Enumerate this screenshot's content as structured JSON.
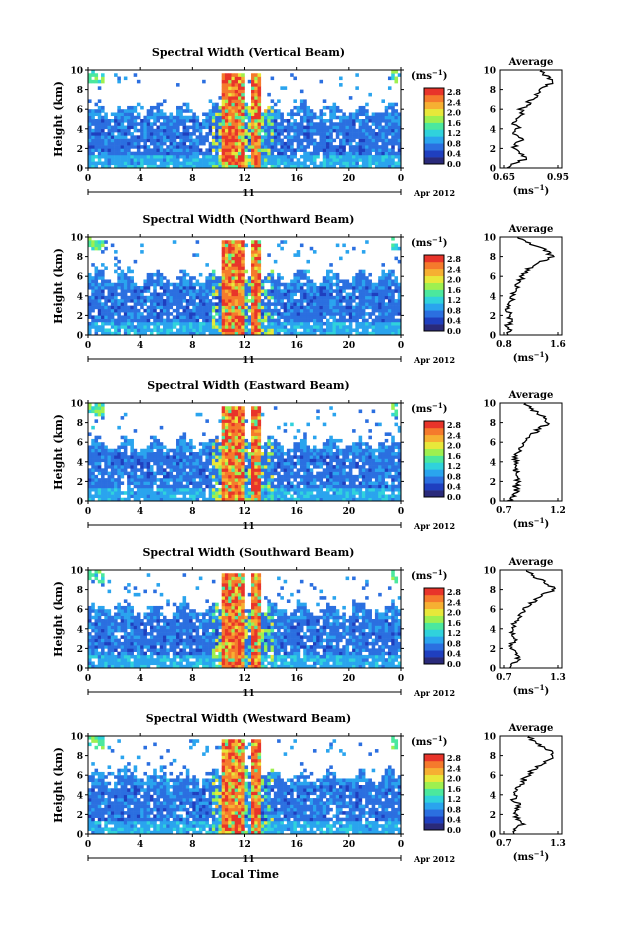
{
  "global": {
    "xlabel": "Local Time",
    "height_label": "Height (km)",
    "unit_label": "(ms",
    "unit_sup": "−1",
    "unit_close": ")",
    "avg_title": "Average",
    "date_day": "11",
    "date_month": "Apr 2012",
    "x_ticks": [
      "0",
      "4",
      "8",
      "12",
      "16",
      "20",
      "0"
    ],
    "y_ticks": [
      "0",
      "2",
      "4",
      "6",
      "8",
      "10"
    ],
    "colorbar_ticks": [
      "0.0",
      "0.4",
      "0.8",
      "1.2",
      "1.6",
      "2.0",
      "2.4",
      "2.8"
    ],
    "colorbar_colors": [
      "#2a2a7a",
      "#1f3fbf",
      "#2b6fe0",
      "#2aa4ee",
      "#30d2dc",
      "#4be89e",
      "#9ef050",
      "#e8e83a",
      "#f6b032",
      "#f57a2c",
      "#e8342a"
    ]
  },
  "chart_data": [
    {
      "type": "heatmap",
      "title": "Spectral Width (Vertical Beam)",
      "x_range": [
        0,
        24
      ],
      "y_range": [
        0,
        10
      ],
      "color_range": [
        0.0,
        3.0
      ],
      "avg_xlim": [
        0.65,
        0.95
      ],
      "avg_xticks": [
        "0.65",
        "0.95"
      ],
      "avg_profile": [
        0.66,
        0.7,
        0.78,
        0.74,
        0.7,
        0.72,
        0.75,
        0.71,
        0.73,
        0.7,
        0.72,
        0.76,
        0.74,
        0.78,
        0.8,
        0.84,
        0.86,
        0.9,
        0.92,
        0.88,
        0.86
      ]
    },
    {
      "type": "heatmap",
      "title": "Spectral Width (Northward Beam)",
      "x_range": [
        0,
        24
      ],
      "y_range": [
        0,
        10
      ],
      "color_range": [
        0.0,
        3.0
      ],
      "avg_xlim": [
        0.8,
        1.6
      ],
      "avg_xticks": [
        "0.8",
        "1.6"
      ],
      "avg_profile": [
        0.84,
        0.88,
        0.86,
        0.9,
        0.87,
        0.86,
        0.88,
        0.92,
        0.9,
        0.95,
        0.98,
        1.02,
        1.08,
        1.12,
        1.2,
        1.35,
        1.5,
        1.45,
        1.3,
        1.1,
        1.0
      ]
    },
    {
      "type": "heatmap",
      "title": "Spectral Width (Eastward Beam)",
      "x_range": [
        0,
        24
      ],
      "y_range": [
        0,
        10
      ],
      "color_range": [
        0.0,
        3.0
      ],
      "avg_xlim": [
        0.7,
        1.2
      ],
      "avg_xticks": [
        "0.7",
        "1.2"
      ],
      "avg_profile": [
        0.75,
        0.78,
        0.82,
        0.8,
        0.84,
        0.8,
        0.82,
        0.79,
        0.81,
        0.8,
        0.83,
        0.86,
        0.88,
        0.92,
        0.98,
        1.05,
        1.12,
        1.08,
        1.0,
        0.94,
        0.9
      ]
    },
    {
      "type": "heatmap",
      "title": "Spectral Width (Southward Beam)",
      "x_range": [
        0,
        24
      ],
      "y_range": [
        0,
        10
      ],
      "color_range": [
        0.0,
        3.0
      ],
      "avg_xlim": [
        0.7,
        1.3
      ],
      "avg_xticks": [
        "0.7",
        "1.3"
      ],
      "avg_profile": [
        0.75,
        0.8,
        0.86,
        0.82,
        0.79,
        0.8,
        0.82,
        0.78,
        0.8,
        0.82,
        0.84,
        0.88,
        0.92,
        0.98,
        1.05,
        1.15,
        1.25,
        1.2,
        1.1,
        1.0,
        0.95
      ]
    },
    {
      "type": "heatmap",
      "title": "Spectral Width (Westward Beam)",
      "x_range": [
        0,
        24
      ],
      "y_range": [
        0,
        10
      ],
      "color_range": [
        0.0,
        3.0
      ],
      "avg_xlim": [
        0.7,
        1.3
      ],
      "avg_xticks": [
        "0.7",
        "1.3"
      ],
      "avg_profile": [
        0.78,
        0.82,
        0.9,
        0.86,
        0.82,
        0.84,
        0.86,
        0.8,
        0.83,
        0.85,
        0.88,
        0.92,
        0.96,
        1.02,
        1.08,
        1.18,
        1.26,
        1.2,
        1.12,
        1.02,
        0.98
      ]
    }
  ]
}
